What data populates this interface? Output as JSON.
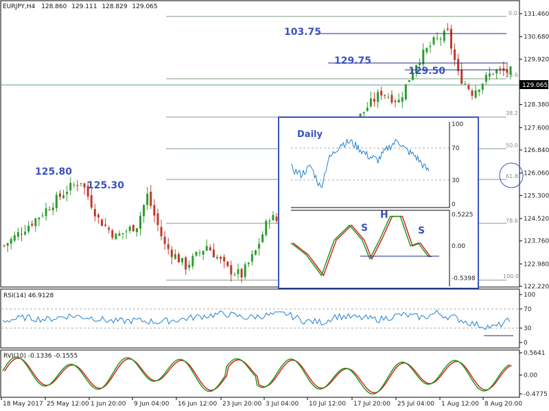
{
  "header": {
    "symbol": "EURJPY,H4",
    "open": "128.860",
    "high": "129.111",
    "low": "128.829",
    "close": "129.065"
  },
  "colors": {
    "bull_candle": "#2a9d2a",
    "bear_candle": "#c0392b",
    "fib_line": "#7f9c80",
    "annotation": "#3a52c2",
    "inset_border": "#3a52c2",
    "rsi_line": "#1e7fd0",
    "rvi_main": "#1a9c1a",
    "rvi_signal": "#d62020",
    "price_tag_bg": "#000000"
  },
  "chart_data": [
    {
      "type": "candlestick",
      "name": "price",
      "series_shape": {
        "count": 146,
        "anchors": [
          [
            0,
            123.6
          ],
          [
            10,
            124.6
          ],
          [
            18,
            125.5
          ],
          [
            22,
            125.8
          ],
          [
            27,
            124.5
          ],
          [
            32,
            123.9
          ],
          [
            38,
            124.3
          ],
          [
            41,
            125.3
          ],
          [
            46,
            123.6
          ],
          [
            52,
            122.9
          ],
          [
            58,
            123.6
          ],
          [
            64,
            122.8
          ],
          [
            68,
            122.6
          ],
          [
            72,
            123.4
          ],
          [
            76,
            124.6
          ],
          [
            80,
            124.3
          ],
          [
            85,
            124.6
          ],
          [
            92,
            124.5
          ],
          [
            96,
            125.4
          ],
          [
            100,
            127.7
          ],
          [
            104,
            128.3
          ],
          [
            108,
            128.8
          ],
          [
            113,
            128.5
          ],
          [
            118,
            129.8
          ],
          [
            123,
            130.5
          ],
          [
            127,
            130.8
          ],
          [
            130,
            129.4
          ],
          [
            134,
            128.8
          ],
          [
            140,
            129.5
          ]
        ]
      },
      "y_ticks": [
        "131.460",
        "130.680",
        "129.920",
        "129.065",
        "128.380",
        "127.600",
        "126.840",
        "126.060",
        "125.300",
        "124.520",
        "123.760",
        "122.980",
        "122.220"
      ],
      "ylim": [
        122.2,
        131.6
      ],
      "x_tick_labels": [
        "18 May 2017",
        "25 May 12:00",
        "1 Jun 20:00",
        "9 Jun 04:00",
        "16 Jun 12:00",
        "23 Jun 20:00",
        "3 Jul 04:00",
        "10 Jul 12:00",
        "17 Jul 20:00",
        "25 Jul 04:00",
        "1 Aug 12:00",
        "8 Aug 20:00"
      ],
      "current_price": "129.065",
      "fib_levels": [
        "0.0",
        "23.6",
        "38.2",
        "50.0",
        "61.8",
        "78.6",
        "100.0"
      ],
      "annotations": [
        "125.80",
        "125.30",
        "103.75",
        "129.75",
        "129.50"
      ]
    },
    {
      "type": "line",
      "name": "daily-inset",
      "title": "Daily",
      "y_ticks": [
        "100",
        "70",
        "30",
        "0"
      ],
      "ylim": [
        0,
        100
      ],
      "dashed_levels": [
        70,
        30
      ],
      "anchors": [
        [
          0,
          45
        ],
        [
          8,
          37
        ],
        [
          16,
          47
        ],
        [
          24,
          20
        ],
        [
          30,
          55
        ],
        [
          40,
          75
        ],
        [
          48,
          78
        ],
        [
          56,
          68
        ],
        [
          62,
          60
        ],
        [
          70,
          55
        ],
        [
          78,
          70
        ],
        [
          86,
          80
        ],
        [
          92,
          68
        ],
        [
          100,
          60
        ],
        [
          110,
          42
        ]
      ]
    },
    {
      "type": "line",
      "name": "daily-rvi-inset",
      "pattern_labels": [
        "S",
        "H",
        "S"
      ],
      "y_ticks": [
        "0.5225",
        "0.00",
        "-0.5398"
      ],
      "ylim": [
        -0.5398,
        0.5225
      ]
    },
    {
      "type": "line",
      "name": "rsi",
      "title": "RSI(14) 46.9128",
      "y_ticks": [
        "100",
        "70",
        "30",
        "0"
      ],
      "ylim": [
        0,
        100
      ],
      "dashed_levels": [
        70,
        30
      ],
      "value": 46.9128
    },
    {
      "type": "line",
      "name": "rvi",
      "title": "RVI(10) -0.1336 -0.1555",
      "y_ticks": [
        "0.5641",
        "0.00",
        "-0.4775"
      ],
      "ylim": [
        -0.4775,
        0.5641
      ],
      "values": [
        -0.1336,
        -0.1555
      ]
    }
  ]
}
